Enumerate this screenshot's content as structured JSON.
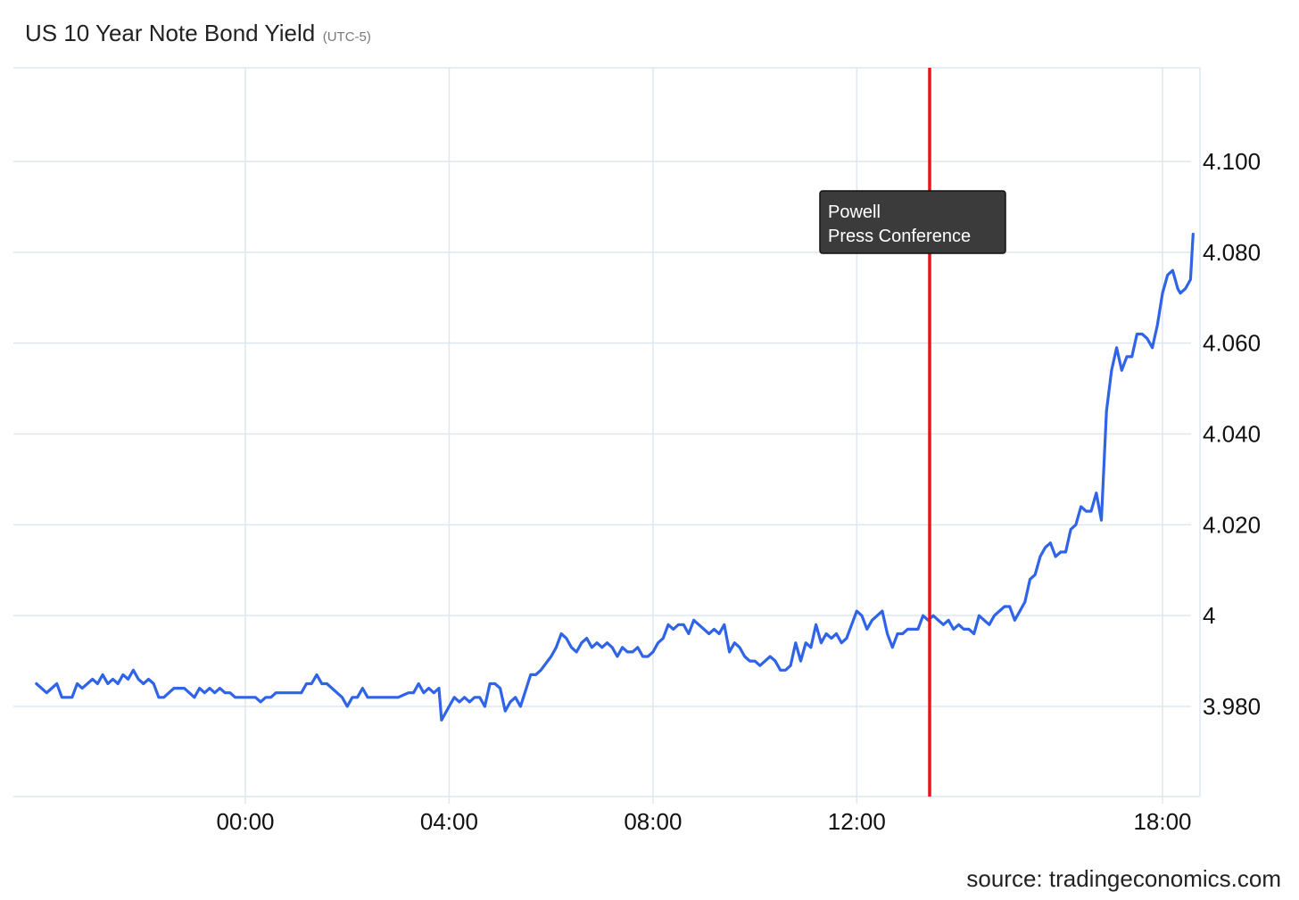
{
  "header": {
    "title": "US 10 Year Note Bond Yield",
    "subtitle": "(UTC-5)"
  },
  "footer": {
    "source": "source: tradingeconomics.com"
  },
  "colors": {
    "line": "#2f63e8",
    "event_marker": "#e8141a",
    "grid": "#dde8ee",
    "annotation_bg": "#3b3b3b"
  },
  "chart_data": {
    "type": "line",
    "title": "US 10 Year Note Bond Yield",
    "subtitle": "(UTC-5)",
    "xlabel": "",
    "ylabel": "",
    "x_unit": "hour of day",
    "xlim": [
      -4.1,
      18.6
    ],
    "ylim": [
      3.9645,
      4.1255
    ],
    "grid": true,
    "legend": "none",
    "x_ticks": [
      {
        "value": 0,
        "label": "00:00"
      },
      {
        "value": 4,
        "label": "04:00"
      },
      {
        "value": 8,
        "label": "08:00"
      },
      {
        "value": 12,
        "label": "12:00"
      },
      {
        "value": 18,
        "label": "18:00"
      }
    ],
    "y_ticks": [
      {
        "value": 3.98,
        "label": "3.980"
      },
      {
        "value": 4.0,
        "label": "4"
      },
      {
        "value": 4.02,
        "label": "4.020"
      },
      {
        "value": 4.04,
        "label": "4.040"
      },
      {
        "value": 4.06,
        "label": "4.060"
      },
      {
        "value": 4.08,
        "label": "4.080"
      },
      {
        "value": 4.1,
        "label": "4.100"
      }
    ],
    "event": {
      "x": 13.5,
      "label_lines": [
        "Powell",
        "Press Conference"
      ]
    },
    "series": [
      {
        "values": [
          [
            -4.1,
            3.985
          ],
          [
            -3.9,
            3.983
          ],
          [
            -3.7,
            3.985
          ],
          [
            -3.6,
            3.982
          ],
          [
            -3.4,
            3.982
          ],
          [
            -3.3,
            3.985
          ],
          [
            -3.2,
            3.984
          ],
          [
            -3.0,
            3.986
          ],
          [
            -2.9,
            3.985
          ],
          [
            -2.8,
            3.987
          ],
          [
            -2.7,
            3.985
          ],
          [
            -2.6,
            3.986
          ],
          [
            -2.5,
            3.985
          ],
          [
            -2.4,
            3.987
          ],
          [
            -2.3,
            3.986
          ],
          [
            -2.2,
            3.988
          ],
          [
            -2.1,
            3.986
          ],
          [
            -2.0,
            3.985
          ],
          [
            -1.9,
            3.986
          ],
          [
            -1.8,
            3.985
          ],
          [
            -1.7,
            3.982
          ],
          [
            -1.6,
            3.982
          ],
          [
            -1.4,
            3.984
          ],
          [
            -1.2,
            3.984
          ],
          [
            -1.0,
            3.982
          ],
          [
            -0.9,
            3.984
          ],
          [
            -0.8,
            3.983
          ],
          [
            -0.7,
            3.984
          ],
          [
            -0.6,
            3.983
          ],
          [
            -0.5,
            3.984
          ],
          [
            -0.4,
            3.983
          ],
          [
            -0.3,
            3.983
          ],
          [
            -0.2,
            3.982
          ],
          [
            0.0,
            3.982
          ],
          [
            0.2,
            3.982
          ],
          [
            0.3,
            3.981
          ],
          [
            0.4,
            3.982
          ],
          [
            0.5,
            3.982
          ],
          [
            0.6,
            3.983
          ],
          [
            0.8,
            3.983
          ],
          [
            1.0,
            3.983
          ],
          [
            1.1,
            3.983
          ],
          [
            1.2,
            3.985
          ],
          [
            1.3,
            3.985
          ],
          [
            1.4,
            3.987
          ],
          [
            1.5,
            3.985
          ],
          [
            1.6,
            3.985
          ],
          [
            1.8,
            3.983
          ],
          [
            1.9,
            3.982
          ],
          [
            2.0,
            3.98
          ],
          [
            2.1,
            3.982
          ],
          [
            2.2,
            3.982
          ],
          [
            2.3,
            3.984
          ],
          [
            2.4,
            3.982
          ],
          [
            2.6,
            3.982
          ],
          [
            2.8,
            3.982
          ],
          [
            3.0,
            3.982
          ],
          [
            3.2,
            3.983
          ],
          [
            3.3,
            3.983
          ],
          [
            3.4,
            3.985
          ],
          [
            3.5,
            3.983
          ],
          [
            3.6,
            3.984
          ],
          [
            3.7,
            3.983
          ],
          [
            3.8,
            3.984
          ],
          [
            3.85,
            3.977
          ],
          [
            4.0,
            3.98
          ],
          [
            4.1,
            3.982
          ],
          [
            4.2,
            3.981
          ],
          [
            4.3,
            3.982
          ],
          [
            4.4,
            3.981
          ],
          [
            4.5,
            3.982
          ],
          [
            4.6,
            3.982
          ],
          [
            4.7,
            3.98
          ],
          [
            4.8,
            3.985
          ],
          [
            4.9,
            3.985
          ],
          [
            5.0,
            3.984
          ],
          [
            5.1,
            3.979
          ],
          [
            5.2,
            3.981
          ],
          [
            5.3,
            3.982
          ],
          [
            5.4,
            3.98
          ],
          [
            5.6,
            3.987
          ],
          [
            5.7,
            3.987
          ],
          [
            5.8,
            3.988
          ],
          [
            6.0,
            3.991
          ],
          [
            6.1,
            3.993
          ],
          [
            6.2,
            3.996
          ],
          [
            6.3,
            3.995
          ],
          [
            6.4,
            3.993
          ],
          [
            6.5,
            3.992
          ],
          [
            6.6,
            3.994
          ],
          [
            6.7,
            3.995
          ],
          [
            6.8,
            3.993
          ],
          [
            6.9,
            3.994
          ],
          [
            7.0,
            3.993
          ],
          [
            7.1,
            3.994
          ],
          [
            7.2,
            3.993
          ],
          [
            7.3,
            3.991
          ],
          [
            7.4,
            3.993
          ],
          [
            7.5,
            3.992
          ],
          [
            7.6,
            3.992
          ],
          [
            7.7,
            3.993
          ],
          [
            7.8,
            3.991
          ],
          [
            7.9,
            3.991
          ],
          [
            8.0,
            3.992
          ],
          [
            8.1,
            3.994
          ],
          [
            8.2,
            3.995
          ],
          [
            8.3,
            3.998
          ],
          [
            8.4,
            3.997
          ],
          [
            8.5,
            3.998
          ],
          [
            8.6,
            3.998
          ],
          [
            8.7,
            3.996
          ],
          [
            8.8,
            3.999
          ],
          [
            8.9,
            3.998
          ],
          [
            9.0,
            3.997
          ],
          [
            9.1,
            3.996
          ],
          [
            9.2,
            3.997
          ],
          [
            9.3,
            3.996
          ],
          [
            9.4,
            3.998
          ],
          [
            9.5,
            3.992
          ],
          [
            9.6,
            3.994
          ],
          [
            9.7,
            3.993
          ],
          [
            9.8,
            3.991
          ],
          [
            9.9,
            3.99
          ],
          [
            10.0,
            3.99
          ],
          [
            10.1,
            3.989
          ],
          [
            10.2,
            3.99
          ],
          [
            10.3,
            3.991
          ],
          [
            10.4,
            3.99
          ],
          [
            10.5,
            3.988
          ],
          [
            10.6,
            3.988
          ],
          [
            10.7,
            3.989
          ],
          [
            10.8,
            3.994
          ],
          [
            10.9,
            3.99
          ],
          [
            11.0,
            3.994
          ],
          [
            11.1,
            3.993
          ],
          [
            11.2,
            3.998
          ],
          [
            11.3,
            3.994
          ],
          [
            11.4,
            3.996
          ],
          [
            11.5,
            3.995
          ],
          [
            11.6,
            3.996
          ],
          [
            11.7,
            3.994
          ],
          [
            11.8,
            3.995
          ],
          [
            11.9,
            3.998
          ],
          [
            12.0,
            4.001
          ],
          [
            12.1,
            4.0
          ],
          [
            12.2,
            3.997
          ],
          [
            12.3,
            3.999
          ],
          [
            12.4,
            4.0
          ],
          [
            12.5,
            4.001
          ],
          [
            12.6,
            3.996
          ],
          [
            12.7,
            3.993
          ],
          [
            12.8,
            3.996
          ],
          [
            12.9,
            3.996
          ],
          [
            13.0,
            3.997
          ],
          [
            13.1,
            3.997
          ],
          [
            13.2,
            3.997
          ],
          [
            13.3,
            4.0
          ],
          [
            13.4,
            3.999
          ],
          [
            13.5,
            4.0
          ],
          [
            13.6,
            3.999
          ],
          [
            13.7,
            3.998
          ],
          [
            13.8,
            3.999
          ],
          [
            13.9,
            3.997
          ],
          [
            14.0,
            3.998
          ],
          [
            14.1,
            3.997
          ],
          [
            14.2,
            3.997
          ],
          [
            14.3,
            3.996
          ],
          [
            14.4,
            4.0
          ],
          [
            14.5,
            3.999
          ],
          [
            14.6,
            3.998
          ],
          [
            14.7,
            4.0
          ],
          [
            14.8,
            4.001
          ],
          [
            14.9,
            4.002
          ],
          [
            15.0,
            4.002
          ],
          [
            15.1,
            3.999
          ],
          [
            15.2,
            4.001
          ],
          [
            15.3,
            4.003
          ],
          [
            15.4,
            4.008
          ],
          [
            15.5,
            4.009
          ],
          [
            15.6,
            4.013
          ],
          [
            15.7,
            4.015
          ],
          [
            15.8,
            4.016
          ],
          [
            15.9,
            4.013
          ],
          [
            16.0,
            4.014
          ],
          [
            16.1,
            4.014
          ],
          [
            16.2,
            4.019
          ],
          [
            16.3,
            4.02
          ],
          [
            16.4,
            4.024
          ],
          [
            16.5,
            4.023
          ],
          [
            16.6,
            4.023
          ],
          [
            16.7,
            4.027
          ],
          [
            16.8,
            4.021
          ],
          [
            16.9,
            4.045
          ],
          [
            17.0,
            4.054
          ],
          [
            17.1,
            4.059
          ],
          [
            17.2,
            4.054
          ],
          [
            17.3,
            4.057
          ],
          [
            17.4,
            4.057
          ],
          [
            17.5,
            4.062
          ],
          [
            17.6,
            4.062
          ],
          [
            17.7,
            4.061
          ],
          [
            17.8,
            4.059
          ],
          [
            17.9,
            4.064
          ],
          [
            18.0,
            4.071
          ],
          [
            18.1,
            4.075
          ],
          [
            18.2,
            4.076
          ],
          [
            18.3,
            4.072
          ],
          [
            18.35,
            4.071
          ],
          [
            18.45,
            4.072
          ],
          [
            18.55,
            4.074
          ],
          [
            18.6,
            4.084
          ]
        ]
      }
    ]
  }
}
